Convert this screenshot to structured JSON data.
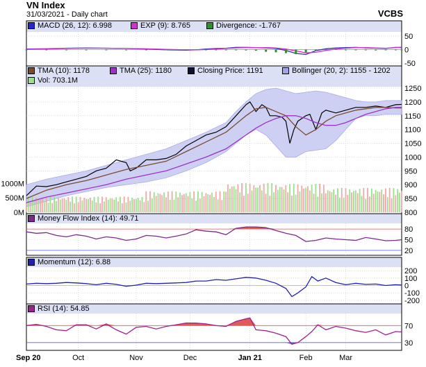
{
  "header": {
    "title": "VN Index",
    "subtitle": "31/03/2021 - Daily chart",
    "brand": "VCBS"
  },
  "colors": {
    "panel_bg": "#ffffff",
    "legend_bg": "#dce0f5",
    "grid": "#c8c8c8",
    "price": "#000000",
    "tma10": "#7a4a2e",
    "tma25": "#a030c8",
    "bollinger_fill": "#c8caf2",
    "bollinger_line": "#a0a4e6",
    "vol_up": "#9be08c",
    "vol_down": "#f0a8a8",
    "macd": "#3030c0",
    "exp": "#d030d0",
    "divergence": "#2f8f2f",
    "mfi": "#7a2a8a",
    "momentum": "#2020b0",
    "rsi": "#a02090",
    "overbought_fill": "#e05a5a",
    "oversold_fill": "#5a5ae0"
  },
  "panels": {
    "macd": {
      "legend": [
        {
          "icon": "blue-square-icon",
          "color": "#2828c8",
          "label": "MACD (26, 12): 6.998"
        },
        {
          "icon": "magenta-square-icon",
          "color": "#d030d0",
          "label": "EXP (9): 8.765"
        },
        {
          "icon": "green-square-icon",
          "color": "#2f8f2f",
          "label": "Divergence: -1.767"
        }
      ]
    },
    "price": {
      "legend": [
        {
          "icon": "brown-square-icon",
          "color": "#7a4a2e",
          "label": "TMA (10): 1178"
        },
        {
          "icon": "purple-square-icon",
          "color": "#a030c8",
          "label": "TMA (25): 1180"
        },
        {
          "icon": "black-square-icon",
          "color": "#101030",
          "label": "Closing Price: 1191"
        },
        {
          "icon": "lavender-square-icon",
          "color": "#a0a4e6",
          "label": "Bollinger (20, 2): 1155 - 1202"
        },
        {
          "icon": "light-green-square-icon",
          "color": "#9be08c",
          "label": "Vol: 703.1M"
        }
      ]
    },
    "mfi": {
      "legend": [
        {
          "icon": "purple-square-icon",
          "color": "#7a2a8a",
          "label": "Money Flow Index (14): 49.71"
        }
      ]
    },
    "momentum": {
      "legend": [
        {
          "icon": "blue-square-icon",
          "color": "#2020b0",
          "label": "Momentum (12): 6.88"
        }
      ]
    },
    "rsi": {
      "legend": [
        {
          "icon": "purple-square-icon",
          "color": "#a02090",
          "label": "RSI (14): 54.85"
        }
      ]
    }
  },
  "chart_data": [
    {
      "panel": "macd",
      "type": "line",
      "ylim": [
        -55,
        60
      ],
      "yticks": [
        "50",
        "0",
        "-50"
      ],
      "ytick_values": [
        50,
        0,
        -50
      ],
      "series": [
        {
          "name": "MACD (26, 12)",
          "x": [
            0,
            10,
            20,
            30,
            40,
            50,
            60,
            70,
            80,
            85,
            90,
            95,
            100,
            105,
            110,
            115,
            120,
            125,
            130,
            135,
            140,
            145,
            150,
            155,
            160,
            165,
            170,
            175,
            180,
            185,
            188
          ],
          "values": [
            2,
            3,
            5,
            6,
            5,
            4,
            2,
            -1,
            -2,
            -1,
            2,
            4,
            5,
            8,
            8,
            7,
            6,
            4,
            -3,
            -14,
            -18,
            -4,
            3,
            6,
            7,
            8,
            6,
            5,
            4,
            8,
            7
          ]
        },
        {
          "name": "EXP (9)",
          "x": [
            0,
            10,
            20,
            30,
            40,
            50,
            60,
            70,
            80,
            85,
            90,
            95,
            100,
            105,
            110,
            115,
            120,
            125,
            130,
            135,
            140,
            145,
            150,
            155,
            160,
            165,
            170,
            175,
            180,
            185,
            188
          ],
          "values": [
            1,
            2,
            4,
            5,
            5,
            4,
            3,
            1,
            -1,
            -1,
            0,
            2,
            4,
            6,
            7,
            7,
            7,
            6,
            2,
            -5,
            -12,
            -10,
            -3,
            2,
            5,
            7,
            7,
            6,
            5,
            7,
            9
          ]
        },
        {
          "name": "Divergence",
          "x": [
            0,
            10,
            20,
            30,
            40,
            50,
            60,
            70,
            80,
            85,
            90,
            95,
            100,
            105,
            110,
            115,
            120,
            125,
            130,
            135,
            140,
            145,
            150,
            155,
            160,
            165,
            170,
            175,
            180,
            185,
            188
          ],
          "values": [
            0,
            -1,
            -1,
            0,
            -1,
            -1,
            -2,
            -2,
            -2,
            -1,
            -1,
            -2,
            -1,
            -2,
            -3,
            -4,
            -8,
            -10,
            -13,
            -17,
            -10,
            -5,
            2,
            2,
            -1,
            -2,
            -1,
            -3,
            -2,
            -2,
            -2
          ]
        }
      ]
    },
    {
      "panel": "price",
      "type": "line",
      "ylim": [
        800,
        1250
      ],
      "yticks": [
        "1250",
        "1200",
        "1150",
        "1100",
        "1050",
        "1000",
        "950",
        "900",
        "850",
        "800"
      ],
      "ytick_values": [
        1250,
        1200,
        1150,
        1100,
        1050,
        1000,
        950,
        900,
        850,
        800
      ],
      "volume_ticks": [
        "1000M",
        "500M",
        "0M"
      ],
      "volume_tick_values": [
        1000,
        500,
        0
      ],
      "x_labels": [
        "Sep 20",
        "Oct",
        "Nov",
        "Dec",
        "Jan 21",
        "Feb",
        "Mar"
      ],
      "x_label_index": [
        0,
        26,
        55,
        82,
        112,
        140,
        160
      ],
      "series": [
        {
          "name": "Closing Price",
          "x": [
            0,
            5,
            10,
            15,
            20,
            25,
            30,
            35,
            40,
            45,
            50,
            52,
            55,
            60,
            65,
            70,
            75,
            80,
            85,
            90,
            95,
            100,
            105,
            110,
            112,
            115,
            118,
            120,
            122,
            125,
            128,
            130,
            132,
            134,
            136,
            138,
            140,
            142,
            145,
            148,
            150,
            155,
            160,
            165,
            170,
            175,
            180,
            185,
            188
          ],
          "values": [
            860,
            895,
            893,
            900,
            910,
            920,
            930,
            950,
            960,
            990,
            980,
            950,
            960,
            990,
            990,
            995,
            1010,
            1040,
            1060,
            1080,
            1090,
            1110,
            1150,
            1190,
            1200,
            1165,
            1190,
            1180,
            1150,
            1150,
            1145,
            1130,
            1050,
            1100,
            1130,
            1140,
            1150,
            1155,
            1100,
            1160,
            1170,
            1160,
            1170,
            1180,
            1180,
            1185,
            1180,
            1190,
            1191
          ]
        },
        {
          "name": "TMA (10)",
          "x": [
            0,
            10,
            20,
            30,
            40,
            50,
            60,
            70,
            80,
            90,
            100,
            105,
            110,
            115,
            120,
            125,
            130,
            135,
            140,
            145,
            150,
            155,
            160,
            165,
            170,
            175,
            180,
            185,
            188
          ],
          "values": [
            850,
            880,
            900,
            915,
            935,
            955,
            970,
            985,
            1020,
            1055,
            1090,
            1120,
            1150,
            1175,
            1180,
            1165,
            1150,
            1110,
            1080,
            1100,
            1130,
            1150,
            1160,
            1170,
            1175,
            1180,
            1180,
            1178,
            1178
          ]
        },
        {
          "name": "TMA (25)",
          "x": [
            0,
            10,
            20,
            30,
            40,
            50,
            60,
            70,
            80,
            90,
            100,
            105,
            110,
            115,
            120,
            125,
            130,
            135,
            140,
            145,
            150,
            155,
            160,
            165,
            170,
            175,
            180,
            185,
            188
          ],
          "values": [
            835,
            855,
            870,
            885,
            900,
            920,
            935,
            950,
            975,
            1000,
            1030,
            1055,
            1080,
            1105,
            1125,
            1140,
            1150,
            1150,
            1140,
            1125,
            1115,
            1115,
            1125,
            1140,
            1155,
            1165,
            1175,
            1180,
            1180
          ]
        },
        {
          "name": "Bollinger Upper",
          "x": [
            0,
            10,
            20,
            30,
            40,
            50,
            60,
            70,
            80,
            90,
            100,
            105,
            110,
            115,
            120,
            125,
            130,
            135,
            140,
            145,
            150,
            155,
            160,
            165,
            170,
            175,
            180,
            185,
            188
          ],
          "values": [
            900,
            920,
            935,
            950,
            970,
            990,
            1010,
            1030,
            1060,
            1090,
            1125,
            1165,
            1200,
            1230,
            1245,
            1250,
            1240,
            1230,
            1235,
            1240,
            1235,
            1225,
            1215,
            1205,
            1200,
            1200,
            1205,
            1205,
            1205
          ]
        },
        {
          "name": "Bollinger Lower",
          "x": [
            0,
            10,
            20,
            30,
            40,
            50,
            60,
            70,
            80,
            90,
            100,
            105,
            110,
            115,
            120,
            125,
            130,
            135,
            140,
            145,
            150,
            155,
            160,
            165,
            170,
            175,
            180,
            185,
            188
          ],
          "values": [
            820,
            840,
            860,
            875,
            890,
            900,
            910,
            925,
            950,
            980,
            1020,
            1050,
            1080,
            1100,
            1080,
            1040,
            1000,
            1000,
            1020,
            1025,
            1030,
            1060,
            1100,
            1140,
            1150,
            1150,
            1155,
            1155,
            1155
          ]
        }
      ],
      "volume": {
        "x_step": 1,
        "count": 189,
        "profile": [
          {
            "x0": 0,
            "x1": 60,
            "v": 420
          },
          {
            "x0": 60,
            "x1": 100,
            "v": 560
          },
          {
            "x0": 100,
            "x1": 125,
            "v": 780
          },
          {
            "x0": 125,
            "x1": 150,
            "v": 760
          },
          {
            "x0": 150,
            "x1": 189,
            "v": 650
          }
        ]
      }
    },
    {
      "panel": "mfi",
      "type": "line",
      "ylim": [
        10,
        92
      ],
      "yticks": [
        "80",
        "50",
        "20"
      ],
      "ytick_values": [
        80,
        50,
        20
      ],
      "overbought": 80,
      "oversold": 20,
      "series": [
        {
          "name": "Money Flow Index (14)",
          "x": [
            0,
            5,
            10,
            15,
            20,
            25,
            30,
            35,
            40,
            45,
            50,
            55,
            60,
            65,
            70,
            75,
            80,
            85,
            90,
            95,
            100,
            105,
            110,
            115,
            120,
            125,
            130,
            135,
            140,
            145,
            150,
            155,
            160,
            165,
            170,
            175,
            180,
            185,
            188
          ],
          "values": [
            72,
            68,
            70,
            62,
            58,
            64,
            60,
            52,
            58,
            55,
            48,
            52,
            62,
            60,
            55,
            60,
            66,
            78,
            74,
            72,
            64,
            82,
            86,
            86,
            84,
            76,
            68,
            62,
            45,
            48,
            55,
            52,
            50,
            48,
            56,
            52,
            47,
            48,
            50
          ]
        }
      ]
    },
    {
      "panel": "momentum",
      "type": "line",
      "ylim": [
        -230,
        230
      ],
      "yticks": [
        "200",
        "100",
        "0",
        "-100",
        "-200"
      ],
      "ytick_values": [
        200,
        100,
        0,
        -100,
        -200
      ],
      "series": [
        {
          "name": "Momentum (12)",
          "x": [
            0,
            5,
            10,
            15,
            20,
            25,
            30,
            35,
            40,
            45,
            50,
            55,
            60,
            65,
            70,
            75,
            80,
            85,
            90,
            95,
            100,
            105,
            110,
            115,
            120,
            125,
            130,
            133,
            136,
            140,
            143,
            146,
            150,
            155,
            160,
            165,
            170,
            175,
            180,
            185,
            188
          ],
          "values": [
            20,
            30,
            25,
            30,
            40,
            35,
            25,
            10,
            30,
            15,
            -10,
            5,
            30,
            25,
            30,
            35,
            40,
            60,
            60,
            80,
            70,
            90,
            110,
            100,
            70,
            30,
            -40,
            -150,
            -100,
            -20,
            120,
            60,
            100,
            40,
            10,
            30,
            15,
            20,
            0,
            10,
            7
          ]
        }
      ]
    },
    {
      "panel": "rsi",
      "type": "line",
      "ylim": [
        15,
        95
      ],
      "yticks": [
        "70",
        "30"
      ],
      "ytick_values": [
        70,
        30
      ],
      "overbought": 70,
      "oversold": 30,
      "series": [
        {
          "name": "RSI (14)",
          "x": [
            0,
            5,
            10,
            15,
            20,
            25,
            30,
            35,
            40,
            45,
            50,
            55,
            60,
            65,
            70,
            75,
            80,
            85,
            90,
            95,
            100,
            105,
            110,
            112,
            115,
            120,
            125,
            130,
            133,
            136,
            140,
            143,
            146,
            150,
            155,
            160,
            165,
            170,
            175,
            180,
            185,
            188
          ],
          "values": [
            70,
            73,
            68,
            60,
            58,
            72,
            72,
            62,
            74,
            60,
            50,
            66,
            68,
            62,
            68,
            72,
            76,
            76,
            74,
            70,
            68,
            80,
            86,
            88,
            60,
            58,
            52,
            44,
            26,
            30,
            44,
            56,
            72,
            60,
            68,
            64,
            58,
            54,
            60,
            48,
            56,
            55
          ]
        }
      ]
    }
  ]
}
